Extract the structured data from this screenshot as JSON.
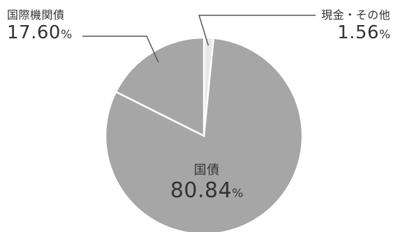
{
  "chart_data": {
    "type": "pie",
    "title": "",
    "slices": [
      {
        "name": "国債",
        "value": 80.84,
        "value_text": "80.84",
        "unit": "%",
        "color": "#a6a6a6"
      },
      {
        "name": "国際機関債",
        "value": 17.6,
        "value_text": "17.60",
        "unit": "%",
        "color": "#a6a6a6"
      },
      {
        "name": "現金・その他",
        "value": 1.56,
        "value_text": "1.56",
        "unit": "%",
        "color": "#e8e8e8"
      }
    ],
    "slice_border_color": "#ffffff",
    "legend": "none"
  }
}
